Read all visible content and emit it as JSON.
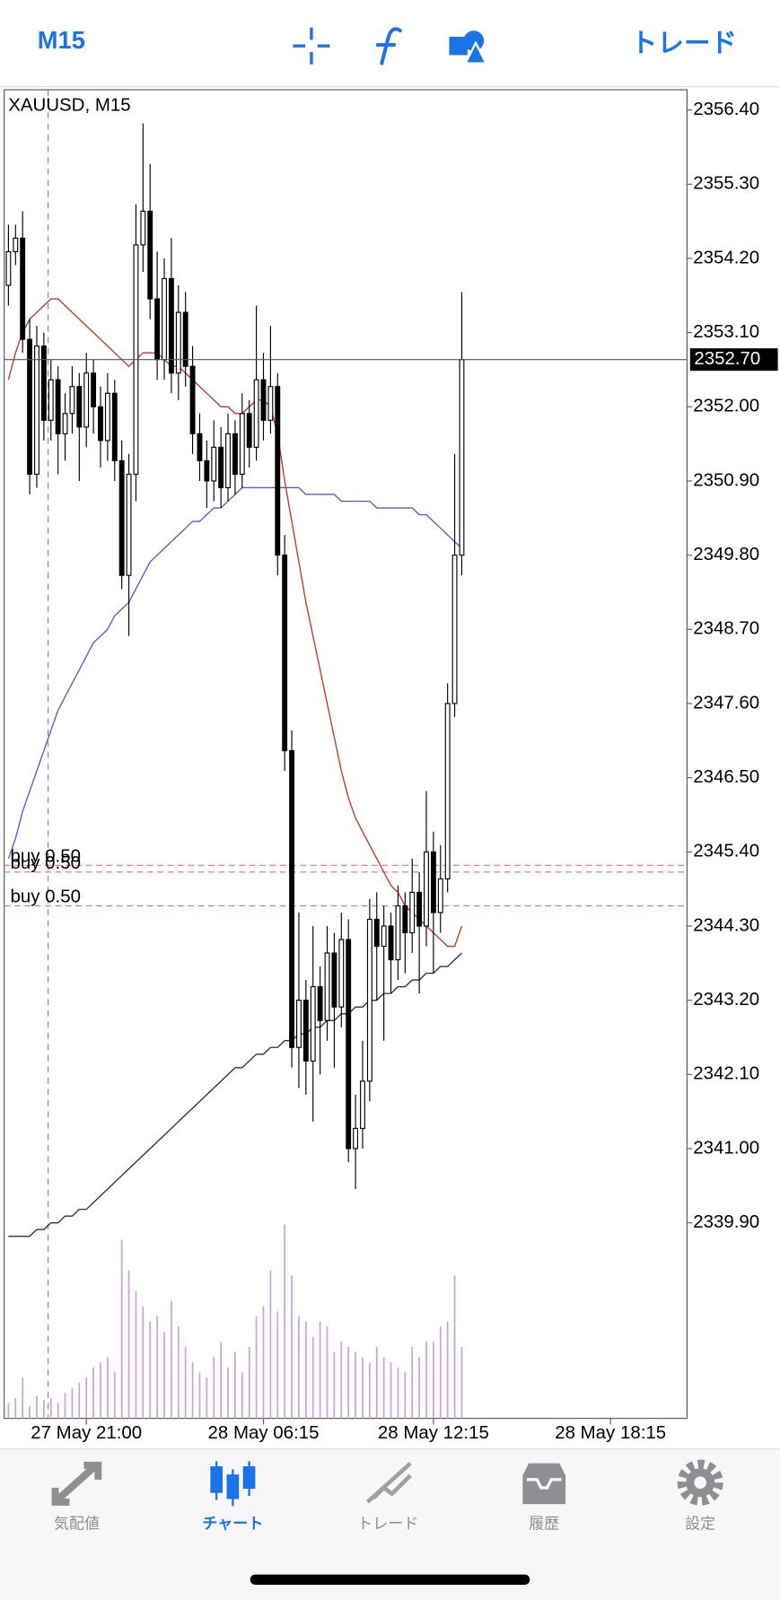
{
  "header": {
    "timeframe": "M15",
    "trade": "トレード"
  },
  "tabs": [
    {
      "label": "気配値"
    },
    {
      "label": "チャート"
    },
    {
      "label": "トレード"
    },
    {
      "label": "履歴"
    },
    {
      "label": "設定"
    }
  ],
  "chart_data": {
    "type": "candlestick",
    "symbol_label": "XAUUSD, M15",
    "ylim": [
      2337.0,
      2356.7
    ],
    "yticks": [
      {
        "value": 2356.4,
        "label": "2356.40"
      },
      {
        "value": 2355.3,
        "label": "2355.30"
      },
      {
        "value": 2354.2,
        "label": "2354.20"
      },
      {
        "value": 2353.1,
        "label": "2353.10"
      },
      {
        "value": 2352.0,
        "label": "2352.00"
      },
      {
        "value": 2350.9,
        "label": "2350.90"
      },
      {
        "value": 2349.8,
        "label": "2349.80"
      },
      {
        "value": 2348.7,
        "label": "2348.70"
      },
      {
        "value": 2347.6,
        "label": "2347.60"
      },
      {
        "value": 2346.5,
        "label": "2346.50"
      },
      {
        "value": 2345.4,
        "label": "2345.40"
      },
      {
        "value": 2344.3,
        "label": "2344.30"
      },
      {
        "value": 2343.2,
        "label": "2343.20"
      },
      {
        "value": 2342.1,
        "label": "2342.10"
      },
      {
        "value": 2341.0,
        "label": "2341.00"
      },
      {
        "value": 2339.9,
        "label": "2339.90"
      }
    ],
    "xlim": [
      -0.6,
      95.8
    ],
    "xticks": [
      {
        "value": 11,
        "label": "27 May 21:00"
      },
      {
        "value": 36,
        "label": "28 May 06:15"
      },
      {
        "value": 60,
        "label": "28 May 12:15"
      },
      {
        "value": 85,
        "label": "28 May 18:15"
      }
    ],
    "open": [
      2353.8,
      2354.3,
      2354.5,
      2353.0,
      2351.0,
      2352.9,
      2351.8,
      2352.4,
      2351.6,
      2351.9,
      2352.3,
      2351.7,
      2352.5,
      2352.0,
      2351.5,
      2352.2,
      2351.2,
      2349.5,
      2351.0,
      2354.4,
      2354.9,
      2353.6,
      2352.7,
      2353.9,
      2352.5,
      2353.4,
      2352.6,
      2351.6,
      2351.2,
      2350.9,
      2351.4,
      2350.8,
      2351.6,
      2351.0,
      2351.9,
      2351.4,
      2352.4,
      2351.8,
      2352.3,
      2349.8,
      2346.9,
      2342.5,
      2343.2,
      2342.3,
      2343.4,
      2342.9,
      2343.9,
      2343.1,
      2344.1,
      2341.0,
      2341.3,
      2342.0,
      2344.4,
      2344.0,
      2344.3,
      2343.8,
      2344.6,
      2344.2,
      2344.8,
      2344.3,
      2345.4,
      2344.5,
      2345.0,
      2347.6,
      2349.8
    ],
    "high": [
      2354.7,
      2354.7,
      2354.9,
      2353.3,
      2353.2,
      2353.1,
      2352.7,
      2352.6,
      2352.2,
      2352.6,
      2352.5,
      2352.8,
      2352.7,
      2352.3,
      2352.5,
      2352.4,
      2351.5,
      2351.3,
      2355.0,
      2356.2,
      2355.6,
      2354.3,
      2354.2,
      2354.5,
      2353.8,
      2353.7,
      2352.9,
      2351.9,
      2351.5,
      2351.8,
      2351.7,
      2351.9,
      2351.8,
      2352.2,
      2352.1,
      2353.5,
      2352.8,
      2353.2,
      2352.5,
      2350.1,
      2347.2,
      2344.5,
      2343.5,
      2344.3,
      2343.7,
      2344.3,
      2344.2,
      2344.5,
      2344.4,
      2341.8,
      2342.6,
      2344.7,
      2344.8,
      2344.6,
      2344.5,
      2344.9,
      2344.8,
      2345.3,
      2345.1,
      2346.3,
      2345.7,
      2345.5,
      2347.9,
      2351.3,
      2353.7
    ],
    "low": [
      2353.5,
      2354.1,
      2352.8,
      2350.7,
      2350.8,
      2351.5,
      2351.5,
      2351.0,
      2351.2,
      2351.6,
      2350.9,
      2351.4,
      2351.6,
      2351.1,
      2351.2,
      2350.9,
      2349.3,
      2348.6,
      2350.6,
      2354.0,
      2353.3,
      2352.4,
      2352.4,
      2352.2,
      2352.1,
      2352.3,
      2351.3,
      2350.9,
      2350.5,
      2350.6,
      2350.5,
      2350.6,
      2350.7,
      2350.8,
      2351.1,
      2351.2,
      2351.5,
      2351.6,
      2349.5,
      2346.6,
      2342.2,
      2341.9,
      2341.8,
      2341.4,
      2342.1,
      2342.6,
      2342.2,
      2342.8,
      2340.8,
      2340.4,
      2341.0,
      2341.7,
      2343.2,
      2342.6,
      2343.3,
      2343.5,
      2343.6,
      2343.9,
      2343.3,
      2344.0,
      2343.6,
      2344.2,
      2344.8,
      2347.4,
      2349.5
    ],
    "close": [
      2354.3,
      2354.5,
      2353.0,
      2351.0,
      2352.9,
      2351.8,
      2352.4,
      2351.6,
      2351.9,
      2352.3,
      2351.7,
      2352.5,
      2352.0,
      2351.5,
      2352.2,
      2351.2,
      2349.5,
      2351.0,
      2354.4,
      2354.9,
      2353.6,
      2352.7,
      2353.9,
      2352.5,
      2353.4,
      2352.6,
      2351.6,
      2351.2,
      2350.9,
      2351.4,
      2350.8,
      2351.6,
      2351.0,
      2351.9,
      2351.4,
      2352.4,
      2351.8,
      2352.3,
      2349.8,
      2346.9,
      2342.5,
      2343.2,
      2342.3,
      2343.4,
      2342.9,
      2343.9,
      2343.1,
      2344.1,
      2341.0,
      2341.3,
      2342.0,
      2344.4,
      2344.0,
      2344.3,
      2343.8,
      2344.6,
      2344.2,
      2344.8,
      2344.3,
      2345.4,
      2344.5,
      2345.0,
      2347.6,
      2349.8,
      2352.7
    ],
    "volume": [
      15,
      20,
      40,
      12,
      22,
      18,
      20,
      15,
      25,
      30,
      35,
      40,
      50,
      55,
      60,
      45,
      175,
      145,
      125,
      110,
      95,
      100,
      85,
      115,
      90,
      70,
      55,
      45,
      40,
      60,
      75,
      50,
      65,
      45,
      70,
      100,
      110,
      145,
      105,
      190,
      140,
      100,
      95,
      80,
      95,
      90,
      65,
      75,
      70,
      65,
      60,
      55,
      70,
      60,
      55,
      50,
      45,
      70,
      60,
      75,
      75,
      90,
      95,
      140,
      70
    ],
    "vlim": [
      0,
      200
    ],
    "volume_color": "#c9a3dc",
    "up_color": "#ffffff",
    "down_color": "#000000",
    "moving_averages": [
      {
        "color": "#c0392b",
        "values": [
          2352.4,
          2352.8,
          2353.1,
          2353.3,
          2353.4,
          2353.5,
          2353.6,
          2353.6,
          2353.5,
          2353.4,
          2353.3,
          2353.2,
          2353.1,
          2353.0,
          2352.9,
          2352.8,
          2352.7,
          2352.6,
          2352.7,
          2352.8,
          2352.8,
          2352.8,
          2352.7,
          2352.6,
          2352.6,
          2352.5,
          2352.4,
          2352.3,
          2352.2,
          2352.1,
          2352.0,
          2352.0,
          2351.9,
          2351.9,
          2352.0,
          2352.1,
          2352.1,
          2352.0,
          2351.6,
          2350.9,
          2350.3,
          2349.7,
          2349.1,
          2348.6,
          2348.1,
          2347.6,
          2347.1,
          2346.6,
          2346.2,
          2345.9,
          2345.7,
          2345.5,
          2345.3,
          2345.1,
          2344.9,
          2344.8,
          2344.6,
          2344.5,
          2344.4,
          2344.3,
          2344.2,
          2344.1,
          2344.0,
          2344.0,
          2344.3
        ]
      },
      {
        "color": "#5b5bd0",
        "values": [
          2345.3,
          2345.6,
          2346.0,
          2346.3,
          2346.6,
          2346.9,
          2347.2,
          2347.5,
          2347.7,
          2347.9,
          2348.1,
          2348.3,
          2348.5,
          2348.6,
          2348.7,
          2348.9,
          2349.0,
          2349.1,
          2349.3,
          2349.5,
          2349.7,
          2349.8,
          2349.9,
          2350.0,
          2350.1,
          2350.2,
          2350.3,
          2350.3,
          2350.4,
          2350.5,
          2350.5,
          2350.6,
          2350.7,
          2350.8,
          2350.8,
          2350.8,
          2350.8,
          2350.8,
          2350.8,
          2350.8,
          2350.8,
          2350.8,
          2350.7,
          2350.7,
          2350.7,
          2350.7,
          2350.7,
          2350.6,
          2350.6,
          2350.6,
          2350.6,
          2350.6,
          2350.5,
          2350.5,
          2350.5,
          2350.5,
          2350.5,
          2350.5,
          2350.4,
          2350.4,
          2350.3,
          2350.2,
          2350.1,
          2350.0,
          2349.9
        ]
      },
      {
        "color": "#333333",
        "values": [
          2339.7,
          2339.7,
          2339.7,
          2339.7,
          2339.8,
          2339.8,
          2339.9,
          2339.9,
          2340.0,
          2340.0,
          2340.1,
          2340.1,
          2340.2,
          2340.3,
          2340.4,
          2340.5,
          2340.6,
          2340.7,
          2340.8,
          2340.9,
          2341.0,
          2341.1,
          2341.2,
          2341.3,
          2341.4,
          2341.5,
          2341.6,
          2341.7,
          2341.8,
          2341.9,
          2342.0,
          2342.1,
          2342.2,
          2342.2,
          2342.3,
          2342.4,
          2342.4,
          2342.5,
          2342.5,
          2342.6,
          2342.6,
          2342.7,
          2342.7,
          2342.8,
          2342.8,
          2342.9,
          2342.9,
          2343.0,
          2343.0,
          2343.1,
          2343.1,
          2343.2,
          2343.2,
          2343.3,
          2343.3,
          2343.4,
          2343.4,
          2343.5,
          2343.5,
          2343.6,
          2343.6,
          2343.7,
          2343.7,
          2343.8,
          2343.9
        ]
      }
    ],
    "current_price": {
      "value": 2352.7,
      "label": "2352.70"
    },
    "orders": [
      {
        "label": "buy 0.50",
        "price": 2345.2
      },
      {
        "label": "buy 0.50",
        "price": 2345.1
      },
      {
        "label": "buy 0.50",
        "price": 2344.6
      }
    ],
    "order_color": "#e57373"
  }
}
